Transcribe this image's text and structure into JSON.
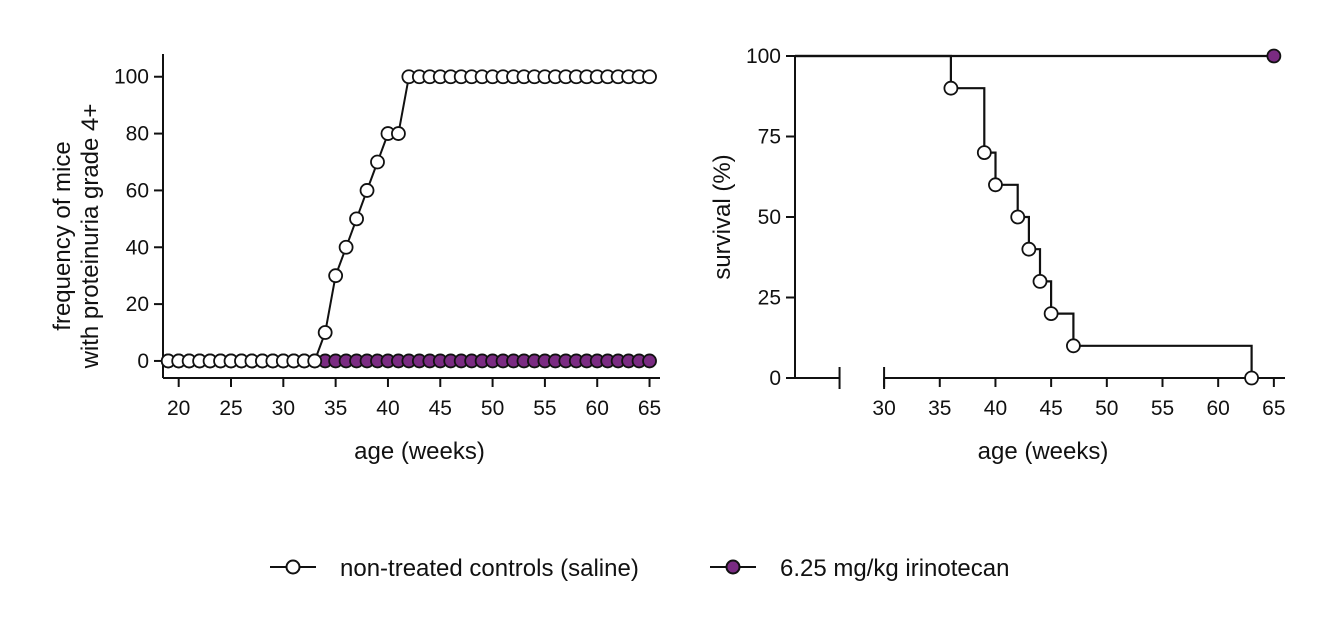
{
  "colors": {
    "axis": "#111111",
    "open_marker_fill": "#ffffff",
    "irinotecan": "#7a2b82"
  },
  "legend": {
    "controls_label": "non-treated controls (saline)",
    "irinotecan_label": "6.25 mg/kg irinotecan"
  },
  "chart_data": [
    {
      "type": "line",
      "xlabel": "age (weeks)",
      "ylabel_lines": [
        "frequency of mice",
        "with proteinuria grade 4+"
      ],
      "xlim": [
        18.5,
        66
      ],
      "ylim": [
        -6,
        108
      ],
      "x_ticks": [
        20,
        25,
        30,
        35,
        40,
        45,
        50,
        55,
        60,
        65
      ],
      "y_ticks": [
        0,
        20,
        40,
        60,
        80,
        100
      ],
      "grid": false,
      "series": [
        {
          "name": "non-treated controls (saline)",
          "marker": "open-circle",
          "x": [
            19,
            20,
            21,
            22,
            23,
            24,
            25,
            26,
            27,
            28,
            29,
            30,
            31,
            32,
            33,
            34,
            35,
            36,
            37,
            38,
            39,
            40,
            41,
            42,
            43,
            44,
            45,
            46,
            47,
            48,
            49,
            50,
            51,
            52,
            53,
            54,
            55,
            56,
            57,
            58,
            59,
            60,
            61,
            62,
            63,
            64,
            65
          ],
          "y": [
            0,
            0,
            0,
            0,
            0,
            0,
            0,
            0,
            0,
            0,
            0,
            0,
            0,
            0,
            0,
            10,
            30,
            40,
            50,
            60,
            70,
            80,
            80,
            100,
            100,
            100,
            100,
            100,
            100,
            100,
            100,
            100,
            100,
            100,
            100,
            100,
            100,
            100,
            100,
            100,
            100,
            100,
            100,
            100,
            100,
            100,
            100
          ]
        },
        {
          "name": "6.25 mg/kg irinotecan",
          "marker": "filled-circle",
          "x": [
            19,
            20,
            21,
            22,
            23,
            24,
            25,
            26,
            27,
            28,
            29,
            30,
            31,
            32,
            33,
            34,
            35,
            36,
            37,
            38,
            39,
            40,
            41,
            42,
            43,
            44,
            45,
            46,
            47,
            48,
            49,
            50,
            51,
            52,
            53,
            54,
            55,
            56,
            57,
            58,
            59,
            60,
            61,
            62,
            63,
            64,
            65
          ],
          "y": [
            0,
            0,
            0,
            0,
            0,
            0,
            0,
            0,
            0,
            0,
            0,
            0,
            0,
            0,
            0,
            0,
            0,
            0,
            0,
            0,
            0,
            0,
            0,
            0,
            0,
            0,
            0,
            0,
            0,
            0,
            0,
            0,
            0,
            0,
            0,
            0,
            0,
            0,
            0,
            0,
            0,
            0,
            0,
            0,
            0,
            0,
            0
          ]
        }
      ]
    },
    {
      "type": "line",
      "style": "step (Kaplan-Meier survival)",
      "xlabel": "age (weeks)",
      "ylabel": "survival (%)",
      "xlim": [
        22,
        66
      ],
      "ylim": [
        0,
        100
      ],
      "axis_break_x": [
        26,
        30
      ],
      "x_ticks": [
        30,
        35,
        40,
        45,
        50,
        55,
        60,
        65
      ],
      "y_ticks": [
        0,
        25,
        50,
        75,
        100
      ],
      "grid": false,
      "series": [
        {
          "name": "non-treated controls (saline)",
          "marker": "open-circle",
          "step_x": [
            22,
            36,
            39,
            40,
            42,
            43,
            44,
            45,
            47,
            63
          ],
          "step_y": [
            100,
            90,
            70,
            60,
            50,
            40,
            30,
            20,
            10,
            0
          ],
          "marker_x": [
            36,
            39,
            40,
            42,
            43,
            44,
            45,
            47,
            63
          ],
          "marker_y": [
            90,
            70,
            60,
            50,
            40,
            30,
            20,
            10,
            0
          ]
        },
        {
          "name": "6.25 mg/kg irinotecan",
          "marker": "filled-circle",
          "step_x": [
            22,
            65
          ],
          "step_y": [
            100,
            100
          ],
          "marker_x": [
            65
          ],
          "marker_y": [
            100
          ]
        }
      ]
    }
  ]
}
